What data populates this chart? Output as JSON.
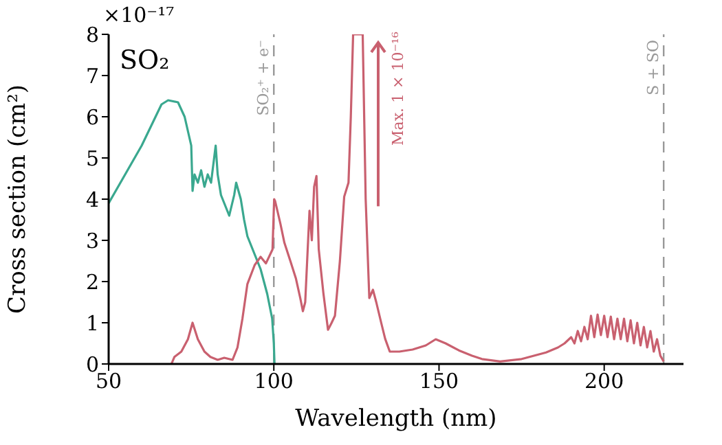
{
  "chart_data": {
    "type": "line",
    "title": "SO₂",
    "xlabel": "Wavelength (nm)",
    "ylabel": "Cross section (cm²)",
    "annotations": [
      "×10⁻¹⁷",
      "Max. 1 × 10⁻¹⁶"
    ],
    "xlim": [
      50,
      224
    ],
    "xticks": [
      50,
      100,
      150,
      200
    ],
    "ylim": [
      0,
      8
    ],
    "yticks": [
      0,
      1,
      2,
      3,
      4,
      5,
      6,
      7,
      8
    ],
    "grid": false,
    "legend": false,
    "marker": "none",
    "line_style": "solid",
    "ref_lines": [
      {
        "axis": "x",
        "value": 100,
        "label": "SO₂⁺ + e⁻",
        "color": "#999999",
        "line_style": "dashed"
      },
      {
        "axis": "x",
        "value": 218,
        "label": "S + SO",
        "color": "#999999",
        "line_style": "dashed"
      }
    ],
    "series": [
      {
        "color": "#3aa88f",
        "x": [
          50,
          55,
          60,
          63,
          66,
          68,
          71,
          73,
          75,
          75.4,
          76,
          77,
          78,
          79,
          80,
          81,
          82.4,
          83,
          84,
          85,
          86.5,
          88,
          88.6,
          90,
          91,
          92,
          94,
          96,
          98,
          99.5,
          100,
          100.2
        ],
        "values": [
          3.9,
          4.6,
          5.3,
          5.8,
          6.3,
          6.4,
          6.35,
          6.0,
          5.3,
          4.2,
          4.6,
          4.4,
          4.7,
          4.3,
          4.6,
          4.4,
          5.3,
          4.6,
          4.1,
          3.9,
          3.6,
          4.1,
          4.4,
          4.0,
          3.5,
          3.1,
          2.7,
          2.3,
          1.7,
          1.1,
          0.5,
          0
        ]
      },
      {
        "color": "#c9606f",
        "x": [
          69,
          69.9,
          72,
          74,
          75.4,
          77,
          79,
          80.8,
          83,
          85,
          87.5,
          89,
          90.5,
          92,
          94.2,
          96,
          97.6,
          99.6,
          100.1,
          100.4,
          102,
          103.2,
          105,
          106.7,
          108,
          108.8,
          109.5,
          110.8,
          111.5,
          112.2,
          112.9,
          113.6,
          115,
          116.4,
          117.5,
          118.5,
          120,
          121.3,
          122.6,
          123.3,
          124,
          126.9,
          127.8,
          128.9,
          130,
          131,
          132.5,
          133.7,
          135.1,
          138,
          142,
          146,
          149,
          152,
          156,
          160,
          163,
          168.5,
          175,
          182.4,
          186,
          188,
          190,
          191,
          192,
          193,
          194,
          195,
          196,
          197,
          198,
          199,
          200,
          201,
          202,
          203,
          204,
          205,
          206,
          207,
          208,
          209,
          210,
          211,
          212,
          213,
          214,
          215,
          216,
          217,
          218
        ],
        "values": [
          0,
          0.17,
          0.3,
          0.6,
          1.0,
          0.6,
          0.3,
          0.17,
          0.1,
          0.15,
          0.1,
          0.4,
          1.1,
          1.94,
          2.4,
          2.6,
          2.44,
          2.78,
          4.0,
          3.95,
          3.4,
          2.94,
          2.5,
          2.07,
          1.6,
          1.28,
          1.5,
          3.72,
          3.0,
          4.3,
          4.56,
          2.78,
          1.72,
          0.83,
          1.0,
          1.17,
          2.5,
          4.06,
          4.4,
          6.0,
          8,
          8,
          4.0,
          1.6,
          1.8,
          1.5,
          1.0,
          0.61,
          0.3,
          0.3,
          0.35,
          0.45,
          0.6,
          0.5,
          0.33,
          0.2,
          0.12,
          0.06,
          0.12,
          0.28,
          0.4,
          0.5,
          0.65,
          0.5,
          0.8,
          0.55,
          0.9,
          0.6,
          1.17,
          0.65,
          1.2,
          0.7,
          1.17,
          0.65,
          1.15,
          0.6,
          1.1,
          0.6,
          1.1,
          0.55,
          1.06,
          0.5,
          1.0,
          0.45,
          0.9,
          0.4,
          0.8,
          0.3,
          0.6,
          0.2,
          0.06
        ]
      }
    ]
  }
}
